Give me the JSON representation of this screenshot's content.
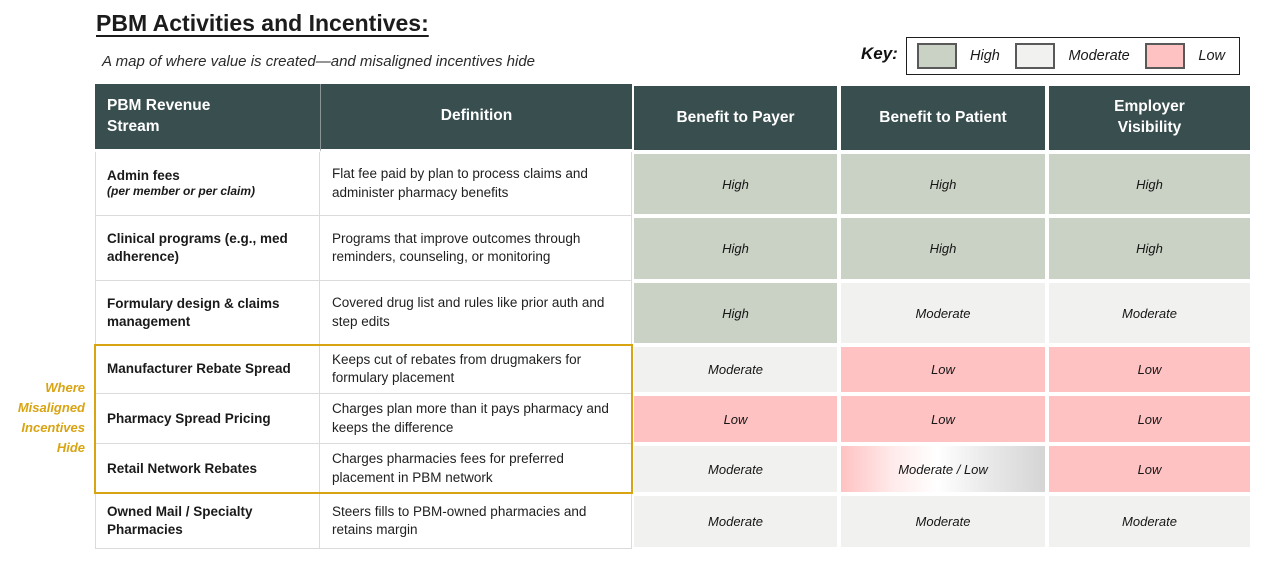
{
  "title": "PBM Activities and Incentives:",
  "subtitle": "A map of where value is created—and misaligned incentives hide",
  "key": {
    "label": "Key:",
    "items": [
      {
        "label": "High",
        "color": "#CAD2C5"
      },
      {
        "label": "Moderate",
        "color": "#F1F1EF"
      },
      {
        "label": "Low",
        "color": "#FFC2C2"
      }
    ]
  },
  "annotation": "Where Misaligned Incentives Hide",
  "table": {
    "columns": [
      "PBM Revenue Stream",
      "Definition",
      "Benefit to Payer",
      "Benefit to Patient",
      "Employer Visibility"
    ],
    "rows": [
      {
        "stream": "Admin fees",
        "note": "(per member or per claim)",
        "definition": "Flat fee paid by plan to process claims and administer pharmacy benefits",
        "payer": "High",
        "patient": "High",
        "employer": "High"
      },
      {
        "stream": "Clinical programs (e.g., med adherence)",
        "definition": "Programs that improve outcomes through reminders, counseling, or monitoring",
        "payer": "High",
        "patient": "High",
        "employer": "High"
      },
      {
        "stream": "Formulary design & claims management",
        "definition": "Covered drug list and rules like prior auth and step edits",
        "payer": "High",
        "patient": "Moderate",
        "employer": "Moderate"
      },
      {
        "stream": "Manufacturer Rebate Spread",
        "definition": "Keeps cut of rebates from drugmakers for formulary placement",
        "payer": "Moderate",
        "patient": "Low",
        "employer": "Low"
      },
      {
        "stream": "Pharmacy Spread Pricing",
        "definition": "Charges plan more than it pays pharmacy and keeps the difference",
        "payer": "Low",
        "patient": "Low",
        "employer": "Low"
      },
      {
        "stream": "Retail Network Rebates",
        "definition": "Charges pharmacies fees for preferred placement in PBM network",
        "payer": "Moderate",
        "patient": "Moderate / Low",
        "employer": "Low"
      },
      {
        "stream": "Owned Mail / Specialty Pharmacies",
        "definition": "Steers fills to PBM-owned pharmacies and retains margin",
        "payer": "Moderate",
        "patient": "Moderate",
        "employer": "Moderate"
      }
    ]
  },
  "colors": {
    "high": "#CAD2C5",
    "moderate": "#F1F1EF",
    "low": "#FFC2C2",
    "header_bg": "#394E4F",
    "accent_gold": "#D9A412"
  }
}
